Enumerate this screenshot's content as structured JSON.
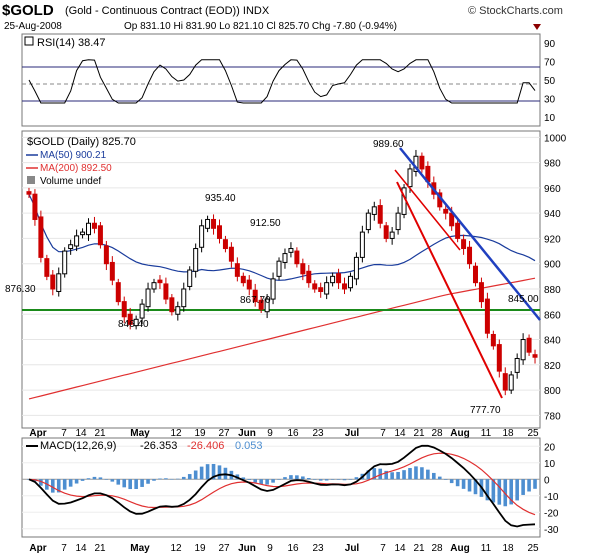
{
  "header": {
    "symbol": "$GOLD",
    "description": "(Gold - Continuous Contract (EOD)) INDX",
    "brand": "© StockCharts.com",
    "date": "25-Aug-2008",
    "quote": "Op 831.10  Hi 831.90  Lo 821.10  Cl 825.70  Chg -7.80 (-0.94%)"
  },
  "rsi_panel": {
    "label": "RSI(14) 38.47",
    "y_ticks": [
      "90",
      "70",
      "50",
      "30",
      "10"
    ]
  },
  "price_panel": {
    "title": "$GOLD (Daily) 825.70",
    "legend": {
      "ma50": "MA(50) 900.21",
      "ma200": "MA(200) 892.50",
      "volume": "Volume undef"
    },
    "y_ticks": [
      "1000",
      "980",
      "960",
      "940",
      "920",
      "900",
      "880",
      "860",
      "840",
      "820",
      "800",
      "780"
    ],
    "annotations": {
      "a876": "876.30",
      "a846": "846.40",
      "a935": "935.40",
      "a912": "912.50",
      "a867": "867.70",
      "a989": "989.60",
      "a845": "845.00",
      "a777": "777.70"
    }
  },
  "macd_panel": {
    "label": "MACD(12,26,9)",
    "v1": "-26.353",
    "v2": "-26.406",
    "v3": "0.053",
    "y_ticks": [
      "20",
      "10",
      "0",
      "-10",
      "-20",
      "-30"
    ]
  },
  "x_axis": {
    "labels": [
      "Apr",
      "7",
      "14",
      "21",
      "May",
      "12",
      "19",
      "27",
      "Jun",
      "9",
      "16",
      "23",
      "Jul",
      "7",
      "14",
      "21",
      "28",
      "Aug",
      "11",
      "18",
      "25"
    ]
  },
  "colors": {
    "up": "#000000",
    "down": "#cc0000",
    "ma50": "#1a3c9c",
    "ma200": "#e03030",
    "support": "#1a8a1a",
    "channel_red": "#e00000",
    "channel_blue": "#2040c0",
    "macd_hist": "#4d8ed0"
  },
  "chart_data": {
    "type": "candlestick",
    "x": [
      "Apr",
      "7",
      "14",
      "21",
      "May",
      "12",
      "19",
      "27",
      "Jun",
      "9",
      "16",
      "23",
      "Jul",
      "7",
      "14",
      "21",
      "28",
      "Aug",
      "11",
      "18",
      "25"
    ],
    "price_ylim": [
      770,
      1005
    ],
    "close_series": [
      955,
      935,
      905,
      890,
      880,
      892,
      910,
      915,
      922,
      925,
      932,
      928,
      915,
      900,
      887,
      870,
      858,
      852,
      856,
      868,
      880,
      885,
      885,
      872,
      862,
      866,
      880,
      895,
      912,
      930,
      935,
      928,
      920,
      912,
      902,
      890,
      885,
      880,
      870,
      864,
      872,
      888,
      902,
      908,
      912,
      900,
      892,
      885,
      880,
      878,
      885,
      890,
      885,
      880,
      890,
      905,
      925,
      940,
      945,
      932,
      920,
      925,
      940,
      960,
      975,
      985,
      975,
      965,
      955,
      945,
      940,
      930,
      920,
      912,
      900,
      885,
      870,
      845,
      835,
      815,
      800,
      812,
      825,
      840,
      830,
      826
    ],
    "ma50": {
      "name": "MA(50)",
      "last": 900.21
    },
    "ma200": {
      "name": "MA(200)",
      "last": 892.5
    },
    "rsi": {
      "name": "RSI(14)",
      "last": 38.47,
      "ylim": [
        0,
        100
      ]
    },
    "macd": {
      "name": "MACD(12,26,9)",
      "macd": -26.353,
      "signal": -26.406,
      "hist": 0.053,
      "ylim": [
        -35,
        25
      ]
    },
    "annotations": [
      876.3,
      846.4,
      935.4,
      912.5,
      867.7,
      989.6,
      845.0,
      777.7
    ]
  }
}
